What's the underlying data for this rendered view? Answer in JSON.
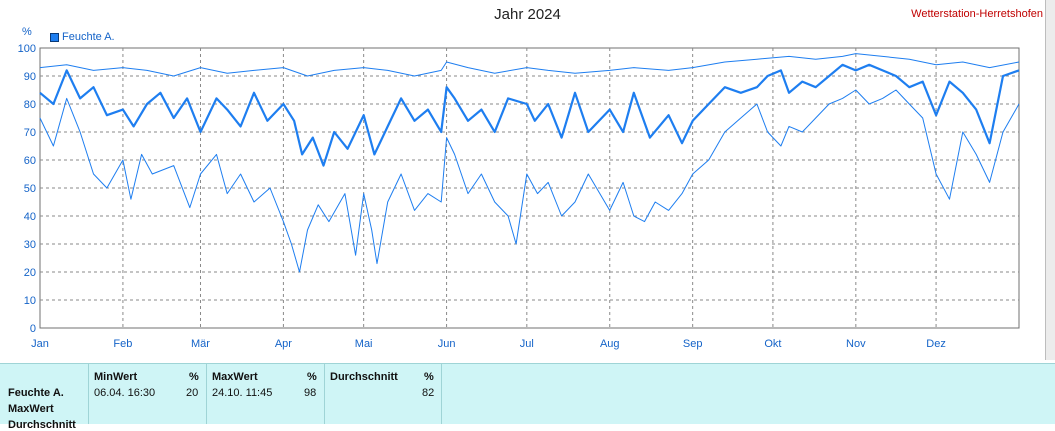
{
  "header": {
    "title": "Jahr 2024",
    "station": "Wetterstation-Herretshofen"
  },
  "chart_data": {
    "type": "line",
    "title": "Jahr 2024",
    "ylabel": "%",
    "ylim": [
      0,
      100
    ],
    "yticks": [
      0,
      10,
      20,
      30,
      40,
      50,
      60,
      70,
      80,
      90,
      100
    ],
    "xlim_day": [
      0,
      366
    ],
    "month_labels": [
      "Jan",
      "Feb",
      "Mär",
      "Apr",
      "Mai",
      "Jun",
      "Jul",
      "Aug",
      "Sep",
      "Okt",
      "Nov",
      "Dez"
    ],
    "grid": true,
    "legend": "top-left",
    "legend_entry": "Feuchte A.",
    "colors": {
      "avg": "#1e7ef0",
      "band": "#1e7ef0"
    },
    "series": [
      {
        "role": "avg",
        "data": [
          [
            0,
            84
          ],
          [
            5,
            80
          ],
          [
            10,
            92
          ],
          [
            15,
            82
          ],
          [
            20,
            86
          ],
          [
            25,
            76
          ],
          [
            31,
            78
          ],
          [
            35,
            72
          ],
          [
            40,
            80
          ],
          [
            45,
            84
          ],
          [
            50,
            75
          ],
          [
            55,
            82
          ],
          [
            60,
            70
          ],
          [
            66,
            82
          ],
          [
            70,
            78
          ],
          [
            75,
            72
          ],
          [
            80,
            84
          ],
          [
            85,
            74
          ],
          [
            91,
            80
          ],
          [
            95,
            74
          ],
          [
            98,
            62
          ],
          [
            102,
            68
          ],
          [
            106,
            58
          ],
          [
            110,
            70
          ],
          [
            115,
            64
          ],
          [
            121,
            76
          ],
          [
            125,
            62
          ],
          [
            130,
            72
          ],
          [
            135,
            82
          ],
          [
            140,
            74
          ],
          [
            145,
            78
          ],
          [
            150,
            70
          ],
          [
            152,
            86
          ],
          [
            155,
            82
          ],
          [
            160,
            74
          ],
          [
            165,
            78
          ],
          [
            170,
            70
          ],
          [
            175,
            82
          ],
          [
            182,
            80
          ],
          [
            185,
            74
          ],
          [
            190,
            80
          ],
          [
            195,
            68
          ],
          [
            200,
            84
          ],
          [
            205,
            70
          ],
          [
            213,
            78
          ],
          [
            218,
            70
          ],
          [
            222,
            84
          ],
          [
            228,
            68
          ],
          [
            235,
            76
          ],
          [
            240,
            66
          ],
          [
            244,
            74
          ],
          [
            250,
            80
          ],
          [
            256,
            86
          ],
          [
            262,
            84
          ],
          [
            268,
            86
          ],
          [
            272,
            90
          ],
          [
            277,
            92
          ],
          [
            280,
            84
          ],
          [
            285,
            88
          ],
          [
            290,
            86
          ],
          [
            295,
            90
          ],
          [
            300,
            94
          ],
          [
            305,
            92
          ],
          [
            310,
            94
          ],
          [
            315,
            92
          ],
          [
            320,
            90
          ],
          [
            325,
            86
          ],
          [
            330,
            88
          ],
          [
            335,
            76
          ],
          [
            340,
            88
          ],
          [
            345,
            84
          ],
          [
            350,
            78
          ],
          [
            355,
            66
          ],
          [
            360,
            90
          ],
          [
            366,
            92
          ]
        ]
      },
      {
        "role": "max",
        "data": [
          [
            0,
            93
          ],
          [
            10,
            94
          ],
          [
            20,
            92
          ],
          [
            31,
            93
          ],
          [
            40,
            92
          ],
          [
            50,
            90
          ],
          [
            60,
            93
          ],
          [
            70,
            91
          ],
          [
            80,
            92
          ],
          [
            91,
            93
          ],
          [
            100,
            90
          ],
          [
            110,
            92
          ],
          [
            121,
            93
          ],
          [
            130,
            92
          ],
          [
            140,
            90
          ],
          [
            150,
            92
          ],
          [
            152,
            95
          ],
          [
            160,
            93
          ],
          [
            170,
            91
          ],
          [
            182,
            93
          ],
          [
            190,
            92
          ],
          [
            200,
            91
          ],
          [
            213,
            92
          ],
          [
            222,
            93
          ],
          [
            235,
            92
          ],
          [
            244,
            93
          ],
          [
            256,
            95
          ],
          [
            268,
            96
          ],
          [
            280,
            97
          ],
          [
            290,
            96
          ],
          [
            300,
            97
          ],
          [
            305,
            98
          ],
          [
            315,
            97
          ],
          [
            325,
            96
          ],
          [
            335,
            94
          ],
          [
            345,
            95
          ],
          [
            355,
            93
          ],
          [
            366,
            95
          ]
        ]
      },
      {
        "role": "min",
        "data": [
          [
            0,
            75
          ],
          [
            5,
            65
          ],
          [
            10,
            82
          ],
          [
            15,
            70
          ],
          [
            20,
            55
          ],
          [
            25,
            50
          ],
          [
            31,
            60
          ],
          [
            34,
            46
          ],
          [
            38,
            62
          ],
          [
            42,
            55
          ],
          [
            50,
            58
          ],
          [
            56,
            43
          ],
          [
            60,
            55
          ],
          [
            66,
            62
          ],
          [
            70,
            48
          ],
          [
            75,
            55
          ],
          [
            80,
            45
          ],
          [
            86,
            50
          ],
          [
            91,
            38
          ],
          [
            94,
            30
          ],
          [
            97,
            20
          ],
          [
            100,
            35
          ],
          [
            104,
            44
          ],
          [
            108,
            38
          ],
          [
            114,
            48
          ],
          [
            118,
            26
          ],
          [
            121,
            48
          ],
          [
            124,
            35
          ],
          [
            126,
            23
          ],
          [
            130,
            45
          ],
          [
            135,
            55
          ],
          [
            140,
            42
          ],
          [
            145,
            48
          ],
          [
            150,
            45
          ],
          [
            152,
            68
          ],
          [
            155,
            62
          ],
          [
            160,
            48
          ],
          [
            165,
            55
          ],
          [
            170,
            45
          ],
          [
            175,
            40
          ],
          [
            178,
            30
          ],
          [
            182,
            55
          ],
          [
            186,
            48
          ],
          [
            190,
            52
          ],
          [
            195,
            40
          ],
          [
            200,
            45
          ],
          [
            205,
            55
          ],
          [
            213,
            42
          ],
          [
            218,
            52
          ],
          [
            222,
            40
          ],
          [
            226,
            38
          ],
          [
            230,
            45
          ],
          [
            235,
            42
          ],
          [
            240,
            48
          ],
          [
            244,
            55
          ],
          [
            250,
            60
          ],
          [
            256,
            70
          ],
          [
            262,
            75
          ],
          [
            268,
            80
          ],
          [
            272,
            70
          ],
          [
            277,
            65
          ],
          [
            280,
            72
          ],
          [
            285,
            70
          ],
          [
            290,
            75
          ],
          [
            295,
            80
          ],
          [
            300,
            82
          ],
          [
            305,
            85
          ],
          [
            310,
            80
          ],
          [
            315,
            82
          ],
          [
            320,
            85
          ],
          [
            325,
            80
          ],
          [
            330,
            75
          ],
          [
            335,
            55
          ],
          [
            340,
            46
          ],
          [
            345,
            70
          ],
          [
            350,
            62
          ],
          [
            355,
            52
          ],
          [
            360,
            70
          ],
          [
            366,
            80
          ]
        ]
      }
    ]
  },
  "stats": {
    "header": {
      "min": "MinWert",
      "min_unit": "%",
      "max": "MaxWert",
      "max_unit": "%",
      "avg": "Durchschnitt",
      "avg_unit": "%"
    },
    "row_label": "Feuchte A.",
    "min_time": "06.04.  16:30",
    "min_value": "20",
    "max_time": "24.10.  11:45",
    "max_value": "98",
    "avg_value": "82",
    "extra_rows": [
      "MaxWert",
      "Durchschnitt"
    ]
  }
}
